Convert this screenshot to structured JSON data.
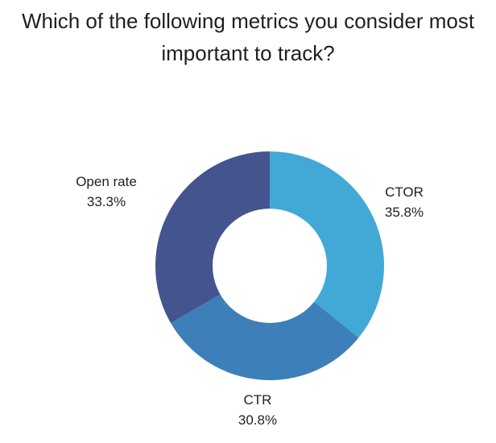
{
  "chart_data": {
    "type": "pie",
    "title_lines": [
      "Which of the following metrics you consider most",
      "important to track?"
    ],
    "categories": [
      "CTOR",
      "CTR",
      "Open rate"
    ],
    "values": [
      35.8,
      30.8,
      33.3
    ],
    "value_labels": [
      "35.8%",
      "30.8%",
      "33.3%"
    ],
    "colors": [
      "#42a9d6",
      "#3d7fb8",
      "#43548f"
    ],
    "donut": true
  }
}
